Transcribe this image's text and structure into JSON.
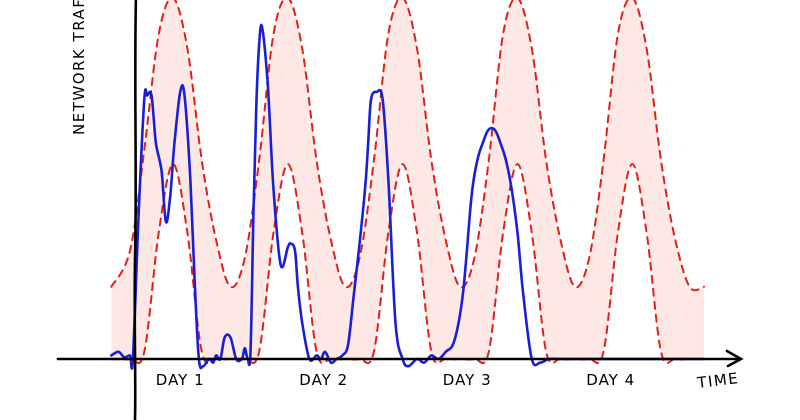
{
  "chart_data": {
    "type": "line",
    "xlabel": "TIME",
    "ylabel": "NETWORK TRAFFIC",
    "categories": [
      "DAY 1",
      "DAY 2",
      "DAY 3",
      "DAY 4"
    ],
    "grid": false,
    "legend": "none",
    "colors": {
      "traffic": "#1a1fd6",
      "expected_band_edge": "#e0201a",
      "expected_band_fill": "#fde8e6",
      "axis": "#000000"
    },
    "xlim": [
      0,
      4.1
    ],
    "ylim": [
      0,
      1
    ],
    "series": [
      {
        "name": "",
        "role": "traffic",
        "x": [
          -0.13,
          -0.08,
          -0.04,
          0.0,
          0.02,
          0.06,
          0.1,
          0.12,
          0.15,
          0.18,
          0.22,
          0.25,
          0.28,
          0.31,
          0.35,
          0.38,
          0.42,
          0.45,
          0.48,
          0.51,
          0.55,
          0.58,
          0.6,
          0.63,
          0.66,
          0.7,
          0.74,
          0.78,
          0.8,
          0.82,
          0.84,
          0.86,
          0.88,
          0.9,
          0.92,
          0.96,
          1.0,
          1.05,
          1.1,
          1.12,
          1.15,
          1.17,
          1.2,
          1.25,
          1.3,
          1.33,
          1.36,
          1.4,
          1.44,
          1.48,
          1.52,
          1.56,
          1.6,
          1.64,
          1.66,
          1.68,
          1.72,
          1.76,
          1.8,
          1.85,
          1.9,
          1.94,
          2.0,
          2.05,
          2.1,
          2.15,
          2.2,
          2.26,
          2.32,
          2.38,
          2.42,
          2.46,
          2.49,
          2.52,
          2.55,
          2.58,
          2.62,
          2.66,
          2.7,
          2.74,
          2.8,
          2.86,
          2.92,
          3.0,
          3.05,
          3.1,
          3.15,
          3.2,
          3.26,
          3.32,
          3.38,
          3.42,
          3.46,
          3.5,
          3.53,
          3.56,
          3.6,
          3.63,
          3.66,
          3.7,
          3.74,
          3.78,
          3.82,
          3.86,
          3.9,
          3.95,
          4.0
        ],
        "y": [
          0.01,
          0.02,
          0.005,
          0.01,
          0.0,
          0.4,
          0.72,
          0.73,
          0.73,
          0.6,
          0.52,
          0.38,
          0.45,
          0.6,
          0.74,
          0.73,
          0.5,
          0.22,
          0.0,
          -0.02,
          0.0,
          -0.01,
          0.01,
          0.0,
          0.06,
          0.06,
          0.0,
          0.0,
          0.03,
          0.0,
          0.02,
          0.4,
          0.7,
          0.87,
          0.92,
          0.76,
          0.47,
          0.26,
          0.31,
          0.32,
          0.3,
          0.2,
          0.1,
          0.0,
          0.01,
          0.0,
          0.02,
          -0.01,
          0.0,
          0.01,
          0.04,
          0.18,
          0.32,
          0.48,
          0.6,
          0.72,
          0.74,
          0.72,
          0.5,
          0.1,
          0.0,
          -0.02,
          0.0,
          -0.01,
          0.01,
          0.0,
          0.02,
          0.05,
          0.18,
          0.45,
          0.55,
          0.6,
          0.63,
          0.64,
          0.63,
          0.6,
          0.55,
          0.47,
          0.35,
          0.18,
          0.0,
          -0.01,
          0.0,
          0.0,
          0.0,
          0.0,
          0.0,
          0.0,
          0.0,
          0.0,
          0.0,
          0.0,
          0.0,
          0.0,
          0.0,
          0.0,
          0.0,
          0.0,
          0.0,
          0.0,
          0.0,
          0.0,
          0.0,
          0.0,
          0.0,
          0.0,
          0.0
        ]
      },
      {
        "name": "",
        "role": "band_upper",
        "x": [
          -0.13,
          0.0,
          0.1,
          0.2,
          0.3,
          0.4,
          0.5,
          0.6,
          0.7,
          0.8,
          0.9,
          1.0,
          1.1,
          1.2,
          1.3,
          1.4,
          1.5,
          1.6,
          1.7,
          1.8,
          1.9,
          2.0,
          2.1,
          2.2,
          2.3,
          2.4,
          2.5,
          2.6,
          2.7,
          2.8,
          2.9,
          3.0,
          3.1,
          3.2,
          3.3,
          3.4,
          3.5,
          3.6,
          3.7,
          3.8,
          3.9,
          4.0
        ],
        "y": [
          0.2,
          0.3,
          0.58,
          0.9,
          1.0,
          0.86,
          0.55,
          0.33,
          0.2,
          0.28,
          0.55,
          0.9,
          1.0,
          0.86,
          0.55,
          0.33,
          0.2,
          0.28,
          0.55,
          0.9,
          1.0,
          0.86,
          0.55,
          0.33,
          0.2,
          0.28,
          0.55,
          0.9,
          1.0,
          0.86,
          0.55,
          0.33,
          0.2,
          0.28,
          0.55,
          0.9,
          1.0,
          0.86,
          0.55,
          0.33,
          0.2,
          0.2
        ]
      },
      {
        "name": "",
        "role": "band_lower",
        "x": [
          -0.13,
          0.0,
          0.1,
          0.2,
          0.3,
          0.4,
          0.5,
          0.6,
          0.7,
          0.8,
          0.9,
          1.0,
          1.1,
          1.2,
          1.3,
          1.4,
          1.5,
          1.6,
          1.7,
          1.8,
          1.9,
          2.0,
          2.1,
          2.2,
          2.3,
          2.4,
          2.5,
          2.6,
          2.7,
          2.8,
          2.9,
          3.0,
          3.1,
          3.2,
          3.3,
          3.4,
          3.5,
          3.6,
          3.7,
          3.8,
          3.9,
          4.0
        ],
        "y": [
          0.0,
          0.0,
          0.02,
          0.35,
          0.54,
          0.35,
          0.02,
          0.0,
          0.0,
          0.0,
          0.02,
          0.35,
          0.54,
          0.35,
          0.02,
          0.0,
          0.0,
          0.0,
          0.02,
          0.35,
          0.54,
          0.35,
          0.02,
          0.0,
          0.0,
          0.0,
          0.02,
          0.35,
          0.54,
          0.35,
          0.02,
          0.0,
          0.0,
          0.0,
          0.02,
          0.35,
          0.54,
          0.35,
          0.02,
          0.0,
          0.0,
          0.0
        ]
      }
    ]
  }
}
